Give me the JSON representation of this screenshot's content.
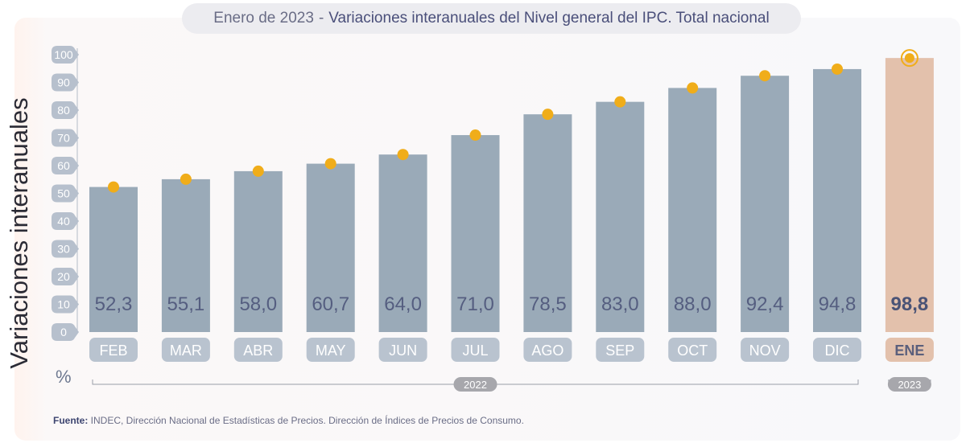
{
  "title": {
    "prefix": "Enero de 2023",
    "separator": "-",
    "main": "Variaciones interanuales del Nivel general del IPC. Total nacional"
  },
  "colors": {
    "bar": "#9aaab8",
    "bar_highlight": "#e3c1ac",
    "marker": "#f0ad1a",
    "tick_badge": "#b7c0cd",
    "month_badge": "#b9c3cf",
    "month_badge_highlight": "#e3c1ac",
    "year_badge": "#a7a7ac"
  },
  "chart_data": {
    "type": "bar",
    "ylabel": "Variaciones interanuales",
    "unit": "%",
    "ylim": [
      0,
      100
    ],
    "yticks": [
      "0",
      "10",
      "20",
      "30",
      "40",
      "50",
      "60",
      "70",
      "80",
      "90",
      "100"
    ],
    "grid": false,
    "categories": [
      "FEB",
      "MAR",
      "ABR",
      "MAY",
      "JUN",
      "JUL",
      "AGO",
      "SEP",
      "OCT",
      "NOV",
      "DIC",
      "ENE"
    ],
    "values": [
      52.3,
      55.1,
      58.0,
      60.7,
      64.0,
      71.0,
      78.5,
      83.0,
      88.0,
      92.4,
      94.8,
      98.8
    ],
    "labels": [
      "52,3",
      "55,1",
      "58,0",
      "60,7",
      "64,0",
      "71,0",
      "78,5",
      "83,0",
      "88,0",
      "92,4",
      "94,8",
      "98,8"
    ],
    "highlight_index": 11,
    "year_groups": [
      {
        "label": "2022",
        "start": 0,
        "end": 10
      },
      {
        "label": "2023",
        "start": 11,
        "end": 11
      }
    ]
  },
  "source": {
    "label": "Fuente:",
    "text": " INDEC, Dirección Nacional de Estadísticas de Precios. Dirección de Índices de Precios de Consumo."
  }
}
